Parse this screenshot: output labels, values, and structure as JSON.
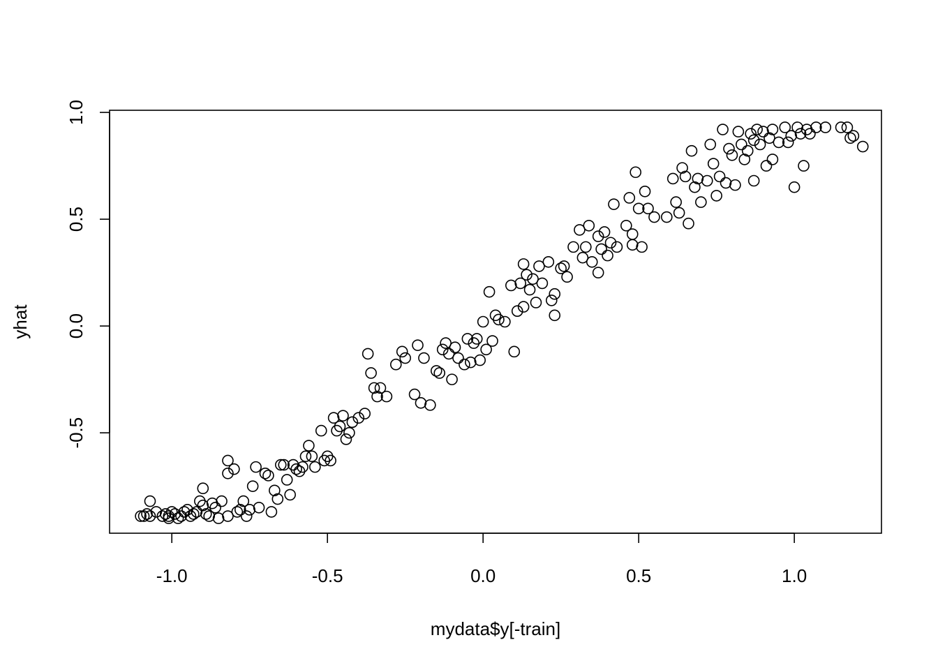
{
  "chart_data": {
    "type": "scatter",
    "title": "",
    "xlabel": "mydata$y[-train]",
    "ylabel": "yhat",
    "xlim": [
      -1.2,
      1.28
    ],
    "ylim": [
      -0.97,
      1.01
    ],
    "xticks": [
      -1.0,
      -0.5,
      0.0,
      0.5,
      1.0
    ],
    "xtick_labels": [
      "-1.0",
      "-0.5",
      "0.0",
      "0.5",
      "1.0"
    ],
    "yticks": [
      -0.5,
      0.0,
      0.5,
      1.0
    ],
    "ytick_labels": [
      "-0.5",
      "0.0",
      "0.5",
      "1.0"
    ],
    "grid": false,
    "marker": "open-circle",
    "points": [
      [
        -1.1,
        -0.89
      ],
      [
        -1.09,
        -0.89
      ],
      [
        -1.08,
        -0.88
      ],
      [
        -1.07,
        -0.89
      ],
      [
        -1.07,
        -0.82
      ],
      [
        -1.05,
        -0.87
      ],
      [
        -1.03,
        -0.89
      ],
      [
        -1.02,
        -0.88
      ],
      [
        -1.01,
        -0.9
      ],
      [
        -1.01,
        -0.89
      ],
      [
        -1.0,
        -0.87
      ],
      [
        -0.99,
        -0.88
      ],
      [
        -0.98,
        -0.9
      ],
      [
        -0.97,
        -0.89
      ],
      [
        -0.96,
        -0.87
      ],
      [
        -0.95,
        -0.86
      ],
      [
        -0.94,
        -0.89
      ],
      [
        -0.93,
        -0.88
      ],
      [
        -0.92,
        -0.87
      ],
      [
        -0.91,
        -0.82
      ],
      [
        -0.9,
        -0.84
      ],
      [
        -0.9,
        -0.76
      ],
      [
        -0.89,
        -0.88
      ],
      [
        -0.88,
        -0.89
      ],
      [
        -0.87,
        -0.83
      ],
      [
        -0.86,
        -0.85
      ],
      [
        -0.85,
        -0.9
      ],
      [
        -0.84,
        -0.82
      ],
      [
        -0.82,
        -0.89
      ],
      [
        -0.82,
        -0.69
      ],
      [
        -0.82,
        -0.63
      ],
      [
        -0.8,
        -0.67
      ],
      [
        -0.79,
        -0.87
      ],
      [
        -0.78,
        -0.86
      ],
      [
        -0.77,
        -0.82
      ],
      [
        -0.76,
        -0.89
      ],
      [
        -0.75,
        -0.86
      ],
      [
        -0.74,
        -0.75
      ],
      [
        -0.73,
        -0.66
      ],
      [
        -0.72,
        -0.85
      ],
      [
        -0.7,
        -0.69
      ],
      [
        -0.69,
        -0.7
      ],
      [
        -0.68,
        -0.87
      ],
      [
        -0.67,
        -0.77
      ],
      [
        -0.66,
        -0.81
      ],
      [
        -0.65,
        -0.65
      ],
      [
        -0.64,
        -0.65
      ],
      [
        -0.63,
        -0.72
      ],
      [
        -0.62,
        -0.79
      ],
      [
        -0.61,
        -0.65
      ],
      [
        -0.6,
        -0.67
      ],
      [
        -0.59,
        -0.68
      ],
      [
        -0.58,
        -0.66
      ],
      [
        -0.57,
        -0.61
      ],
      [
        -0.56,
        -0.56
      ],
      [
        -0.55,
        -0.61
      ],
      [
        -0.54,
        -0.66
      ],
      [
        -0.52,
        -0.49
      ],
      [
        -0.51,
        -0.63
      ],
      [
        -0.5,
        -0.61
      ],
      [
        -0.49,
        -0.63
      ],
      [
        -0.48,
        -0.43
      ],
      [
        -0.47,
        -0.49
      ],
      [
        -0.46,
        -0.47
      ],
      [
        -0.45,
        -0.42
      ],
      [
        -0.44,
        -0.53
      ],
      [
        -0.43,
        -0.5
      ],
      [
        -0.42,
        -0.45
      ],
      [
        -0.4,
        -0.43
      ],
      [
        -0.38,
        -0.41
      ],
      [
        -0.37,
        -0.13
      ],
      [
        -0.36,
        -0.22
      ],
      [
        -0.35,
        -0.29
      ],
      [
        -0.34,
        -0.33
      ],
      [
        -0.33,
        -0.29
      ],
      [
        -0.31,
        -0.33
      ],
      [
        -0.28,
        -0.18
      ],
      [
        -0.26,
        -0.12
      ],
      [
        -0.25,
        -0.15
      ],
      [
        -0.22,
        -0.32
      ],
      [
        -0.21,
        -0.09
      ],
      [
        -0.2,
        -0.36
      ],
      [
        -0.19,
        -0.15
      ],
      [
        -0.17,
        -0.37
      ],
      [
        -0.15,
        -0.21
      ],
      [
        -0.14,
        -0.22
      ],
      [
        -0.13,
        -0.11
      ],
      [
        -0.12,
        -0.08
      ],
      [
        -0.11,
        -0.13
      ],
      [
        -0.1,
        -0.25
      ],
      [
        -0.09,
        -0.1
      ],
      [
        -0.08,
        -0.15
      ],
      [
        -0.06,
        -0.18
      ],
      [
        -0.05,
        -0.06
      ],
      [
        -0.04,
        -0.17
      ],
      [
        -0.03,
        -0.08
      ],
      [
        -0.02,
        -0.06
      ],
      [
        -0.01,
        -0.16
      ],
      [
        0.0,
        0.02
      ],
      [
        0.01,
        -0.11
      ],
      [
        0.02,
        0.16
      ],
      [
        0.03,
        -0.07
      ],
      [
        0.04,
        0.05
      ],
      [
        0.05,
        0.03
      ],
      [
        0.07,
        0.02
      ],
      [
        0.09,
        0.19
      ],
      [
        0.1,
        -0.12
      ],
      [
        0.11,
        0.07
      ],
      [
        0.12,
        0.2
      ],
      [
        0.13,
        0.09
      ],
      [
        0.13,
        0.29
      ],
      [
        0.14,
        0.24
      ],
      [
        0.15,
        0.17
      ],
      [
        0.16,
        0.22
      ],
      [
        0.17,
        0.11
      ],
      [
        0.18,
        0.28
      ],
      [
        0.19,
        0.2
      ],
      [
        0.21,
        0.3
      ],
      [
        0.22,
        0.12
      ],
      [
        0.23,
        0.15
      ],
      [
        0.23,
        0.05
      ],
      [
        0.25,
        0.27
      ],
      [
        0.26,
        0.28
      ],
      [
        0.27,
        0.23
      ],
      [
        0.29,
        0.37
      ],
      [
        0.31,
        0.45
      ],
      [
        0.32,
        0.32
      ],
      [
        0.33,
        0.37
      ],
      [
        0.34,
        0.47
      ],
      [
        0.35,
        0.3
      ],
      [
        0.37,
        0.25
      ],
      [
        0.37,
        0.42
      ],
      [
        0.38,
        0.36
      ],
      [
        0.39,
        0.44
      ],
      [
        0.4,
        0.33
      ],
      [
        0.41,
        0.39
      ],
      [
        0.42,
        0.57
      ],
      [
        0.43,
        0.37
      ],
      [
        0.46,
        0.47
      ],
      [
        0.47,
        0.6
      ],
      [
        0.48,
        0.43
      ],
      [
        0.48,
        0.38
      ],
      [
        0.49,
        0.72
      ],
      [
        0.5,
        0.55
      ],
      [
        0.51,
        0.37
      ],
      [
        0.52,
        0.63
      ],
      [
        0.53,
        0.55
      ],
      [
        0.55,
        0.51
      ],
      [
        0.59,
        0.51
      ],
      [
        0.61,
        0.69
      ],
      [
        0.62,
        0.58
      ],
      [
        0.63,
        0.53
      ],
      [
        0.64,
        0.74
      ],
      [
        0.65,
        0.7
      ],
      [
        0.66,
        0.48
      ],
      [
        0.67,
        0.82
      ],
      [
        0.68,
        0.65
      ],
      [
        0.69,
        0.69
      ],
      [
        0.7,
        0.58
      ],
      [
        0.72,
        0.68
      ],
      [
        0.73,
        0.85
      ],
      [
        0.74,
        0.76
      ],
      [
        0.75,
        0.61
      ],
      [
        0.76,
        0.7
      ],
      [
        0.77,
        0.92
      ],
      [
        0.78,
        0.67
      ],
      [
        0.79,
        0.83
      ],
      [
        0.8,
        0.8
      ],
      [
        0.81,
        0.66
      ],
      [
        0.82,
        0.91
      ],
      [
        0.83,
        0.85
      ],
      [
        0.84,
        0.78
      ],
      [
        0.85,
        0.82
      ],
      [
        0.86,
        0.9
      ],
      [
        0.87,
        0.87
      ],
      [
        0.87,
        0.68
      ],
      [
        0.88,
        0.92
      ],
      [
        0.89,
        0.85
      ],
      [
        0.9,
        0.91
      ],
      [
        0.91,
        0.75
      ],
      [
        0.92,
        0.88
      ],
      [
        0.93,
        0.78
      ],
      [
        0.93,
        0.92
      ],
      [
        0.95,
        0.86
      ],
      [
        0.97,
        0.93
      ],
      [
        0.98,
        0.86
      ],
      [
        0.99,
        0.89
      ],
      [
        1.0,
        0.65
      ],
      [
        1.01,
        0.93
      ],
      [
        1.02,
        0.9
      ],
      [
        1.03,
        0.75
      ],
      [
        1.04,
        0.92
      ],
      [
        1.05,
        0.9
      ],
      [
        1.07,
        0.93
      ],
      [
        1.1,
        0.93
      ],
      [
        1.15,
        0.93
      ],
      [
        1.17,
        0.93
      ],
      [
        1.18,
        0.88
      ],
      [
        1.19,
        0.89
      ],
      [
        1.22,
        0.84
      ]
    ]
  }
}
